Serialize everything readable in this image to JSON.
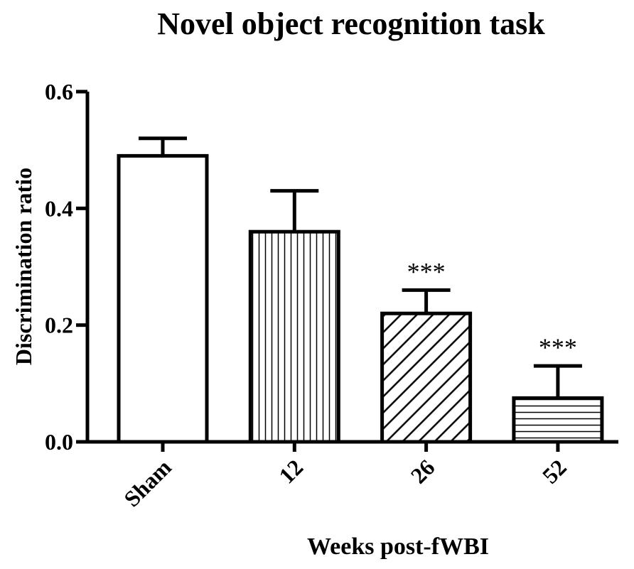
{
  "chart_data": {
    "type": "bar",
    "title": "Novel object recognition task",
    "x_label": "Weeks post-fWBI",
    "y_label": "Discrimination  ratio",
    "categories": [
      "Sham",
      "12",
      "26",
      "52"
    ],
    "values": [
      0.49,
      0.36,
      0.22,
      0.075
    ],
    "errors": [
      0.03,
      0.07,
      0.04,
      0.055
    ],
    "patterns": [
      "none",
      "vertical",
      "diagonal",
      "horizontal"
    ],
    "color": "#000000",
    "ylim": [
      0,
      0.6
    ],
    "yticks": [
      {
        "value": 0,
        "label": "0.0"
      },
      0.2,
      0.4,
      0.6
    ],
    "annotations": [
      {
        "text": "***",
        "category": 2
      },
      {
        "text": "***",
        "category": 3
      }
    ]
  }
}
